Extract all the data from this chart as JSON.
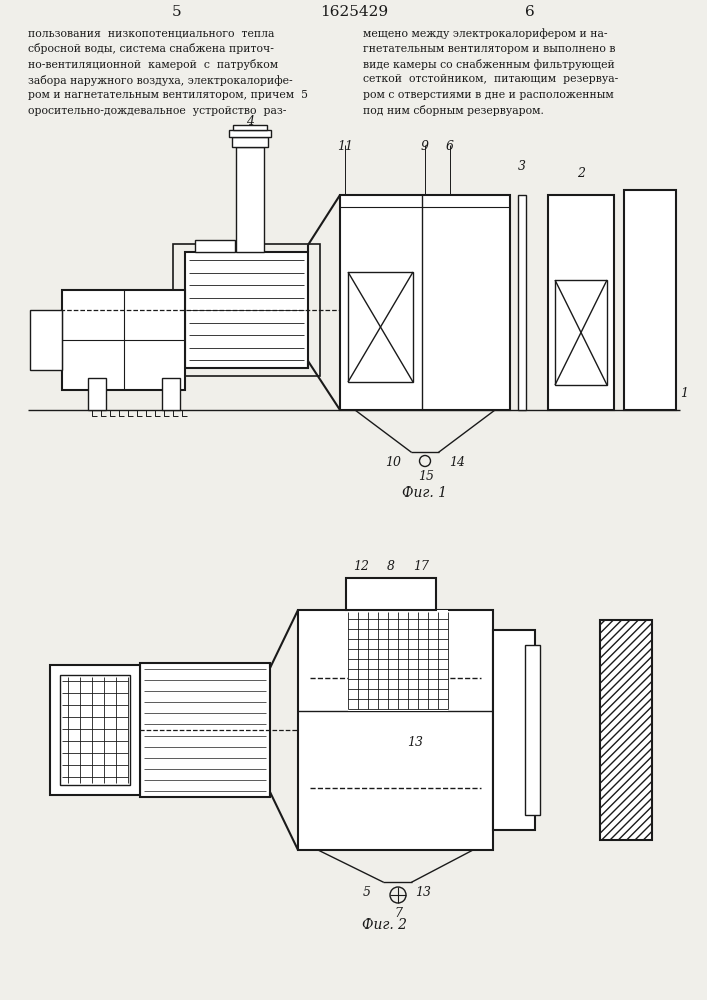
{
  "page_num_left": "5",
  "page_num_center": "1625429",
  "page_num_right": "6",
  "text_left": [
    "пользования  низкопотенциального  тепла",
    "сбросной воды, система снабжена приточ-",
    "но-вентиляционной  камерой  с  патрубком",
    "забора наружного воздуха, электрокалорифе-",
    "ром и нагнетательным вентилятором, причем  5",
    "оросительно-дождевальное  устройство  раз-"
  ],
  "text_right": [
    "мещено между электрокалорифером и на-",
    "гнетательным вентилятором и выполнено в",
    "виде камеры со снабженным фильтрующей",
    "сеткой  отстойником,  питающим  резервуа-",
    "ром с отверстиями в дне и расположенным",
    "под ним сборным резервуаром."
  ],
  "fig1_label": "Фиг. 1",
  "fig2_label": "Фиг. 2",
  "bg_color": "#f0efea",
  "line_color": "#1a1a1a"
}
